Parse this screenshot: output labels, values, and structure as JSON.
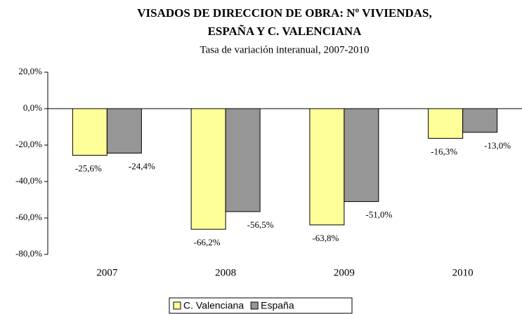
{
  "chart_data": {
    "type": "bar",
    "title": [
      "VISADOS DE DIRECCION DE OBRA: Nº VIVIENDAS,",
      "ESPAÑA Y C. VALENCIANA"
    ],
    "subtitle": "Tasa de variación interanual, 2007-2010",
    "categories": [
      "2007",
      "2008",
      "2009",
      "2010"
    ],
    "series": [
      {
        "name": "C. Valenciana",
        "color": "#ffff99",
        "values": [
          -25.6,
          -66.2,
          -63.8,
          -16.3
        ],
        "value_labels": [
          "-25,6%",
          "-66,2%",
          "-63,8%",
          "-16,3%"
        ]
      },
      {
        "name": "España",
        "color": "#969696",
        "values": [
          -24.4,
          -56.5,
          -51.0,
          -13.0
        ],
        "value_labels": [
          "-24,4%",
          "-56,5%",
          "-51,0%",
          "-13,0%"
        ]
      }
    ],
    "ylim": [
      -80,
      20
    ],
    "yticks": [
      {
        "value": 20,
        "label": "20,0%"
      },
      {
        "value": 0,
        "label": "0,0%"
      },
      {
        "value": -20,
        "label": "-20,0%"
      },
      {
        "value": -40,
        "label": "-40,0%"
      },
      {
        "value": -60,
        "label": "-60,0%"
      },
      {
        "value": -80,
        "label": "-80,0%"
      }
    ],
    "grid": false,
    "legend": "bottom"
  }
}
